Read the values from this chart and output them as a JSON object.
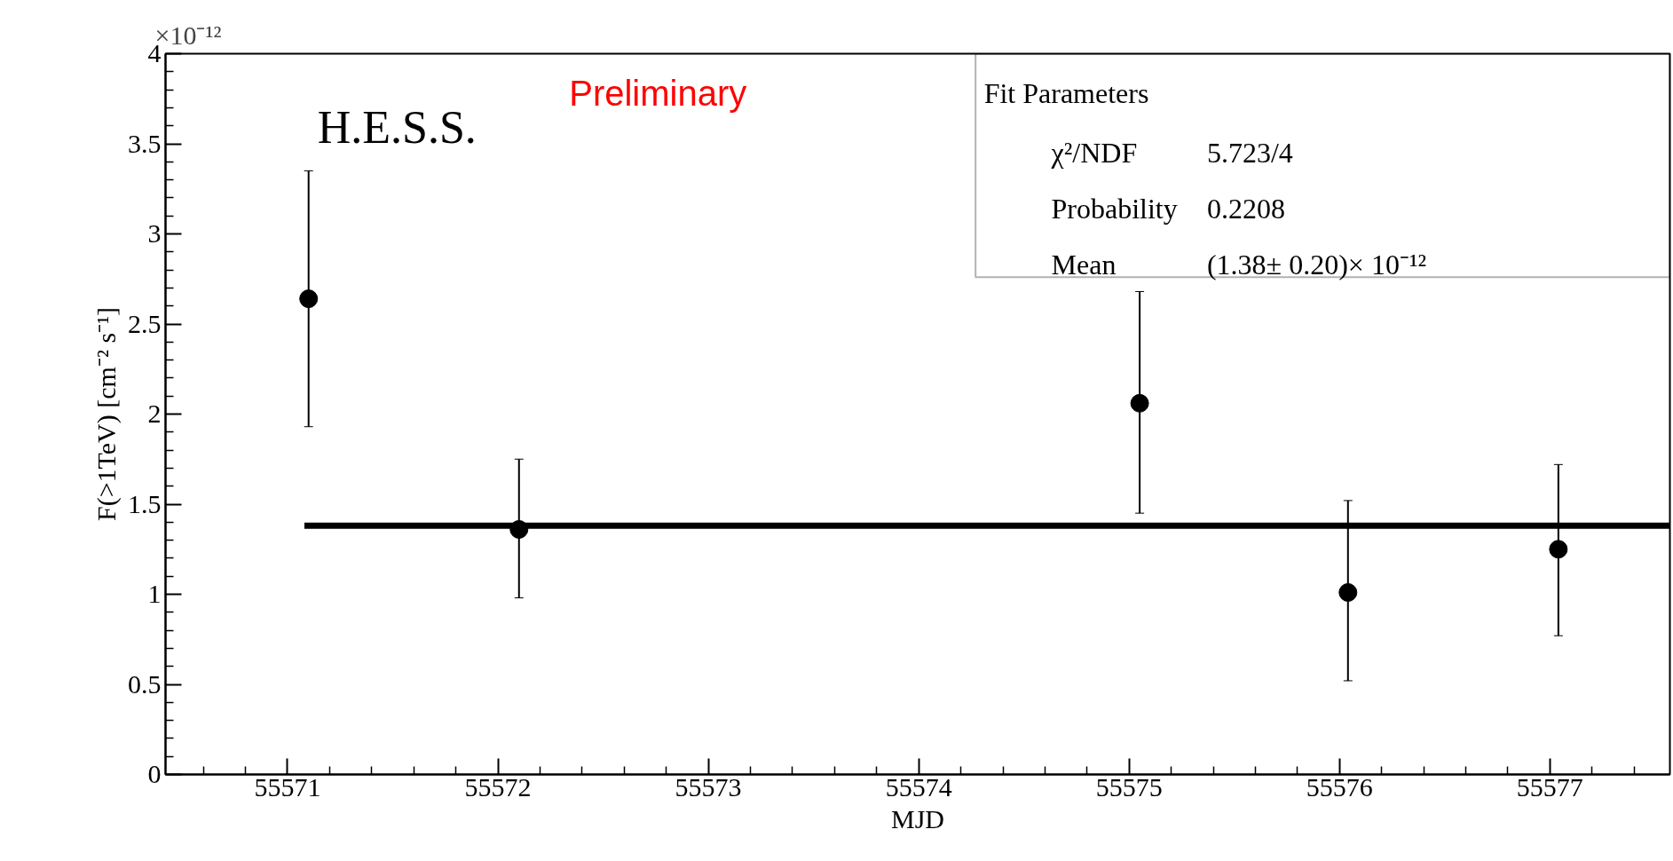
{
  "chart_data": {
    "type": "scatter",
    "xlabel": "MJD",
    "ylabel": "F(>1TeV) [cm⁻² s⁻¹]",
    "xlim": [
      55570.42,
      55577.57
    ],
    "xticks": [
      55571,
      55572,
      55573,
      55574,
      55575,
      55576,
      55577
    ],
    "ylim": [
      0,
      4
    ],
    "yticks": [
      0,
      0.5,
      1,
      1.5,
      2,
      2.5,
      3,
      3.5,
      4
    ],
    "grid": false,
    "series": [
      {
        "marker": "circle",
        "color": "#000000",
        "x": [
          55571.1,
          55572.1,
          55575.05,
          55576.04,
          55577.04
        ],
        "values": [
          2.64,
          1.36,
          2.06,
          1.01,
          1.25
        ],
        "errors": [
          [
            1.93,
            3.35
          ],
          [
            0.98,
            1.75
          ],
          [
            1.45,
            2.68
          ],
          [
            0.52,
            1.52
          ],
          [
            0.77,
            1.72
          ]
        ]
      },
      {
        "type": "line",
        "color": "#000000",
        "x": [
          55571.08,
          55577.57
        ],
        "values": [
          1.38,
          1.38
        ]
      }
    ],
    "annotations": [
      "×10⁻¹²",
      "H.E.S.S.",
      "Preliminary",
      "Fit Parameters",
      "χ²/NDF",
      "5.723/4",
      "Probability",
      "0.2208",
      "Mean",
      "(1.38± 0.20)× 10⁻¹²"
    ]
  }
}
